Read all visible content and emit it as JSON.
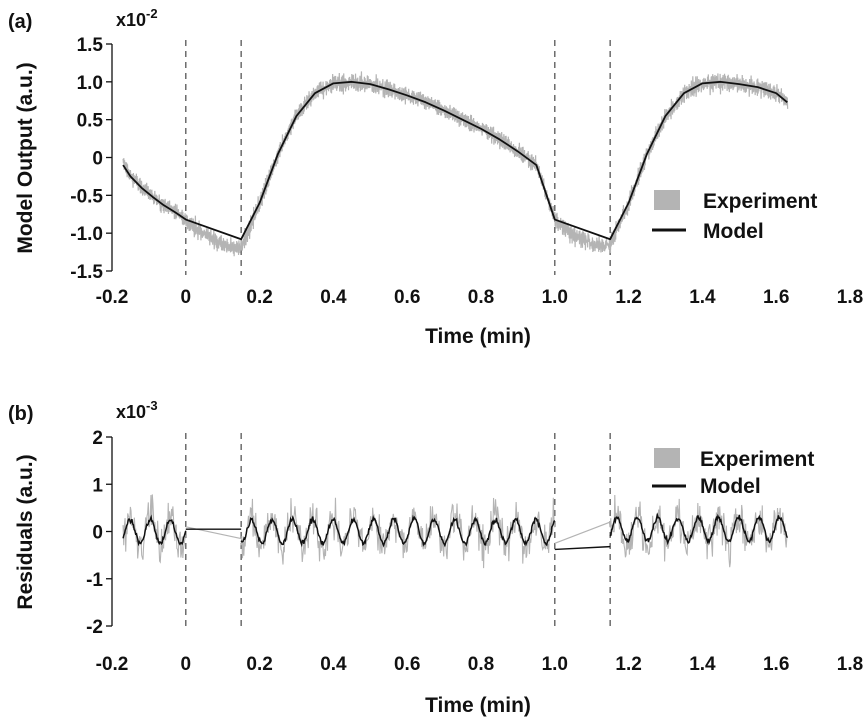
{
  "colors": {
    "experiment": "#b4b4b4",
    "model": "#111111",
    "axis": "#111111",
    "dashed": "#555555"
  },
  "chart_data": [
    {
      "panel_label": "(a)",
      "type": "line",
      "xlabel": "Time (min)",
      "ylabel": "Model Output (a.u.)",
      "y_multiplier": "x10",
      "y_multiplier_exp": "-2",
      "xlim": [
        -0.2,
        1.8
      ],
      "ylim": [
        -1.5,
        1.5
      ],
      "xticks": [
        "-0.2",
        "0",
        "0.2",
        "0.4",
        "0.6",
        "0.8",
        "1.0",
        "1.2",
        "1.4",
        "1.6",
        "1.8"
      ],
      "xtick_values": [
        -0.2,
        0,
        0.2,
        0.4,
        0.6,
        0.8,
        1.0,
        1.2,
        1.4,
        1.6,
        1.8
      ],
      "yticks": [
        "1.5",
        "1.0",
        "0.5",
        "0",
        "-0.5",
        "-1.0",
        "-1.5"
      ],
      "ytick_values": [
        1.5,
        1.0,
        0.5,
        0,
        -0.5,
        -1.0,
        -1.5
      ],
      "vlines": [
        0,
        0.15,
        1.0,
        1.15
      ],
      "legend": {
        "position": "right",
        "items": [
          "Experiment",
          "Model"
        ]
      },
      "series": [
        {
          "name": "Experiment",
          "style": "noisy-band",
          "x": [
            -0.17,
            -0.15,
            -0.12,
            -0.09,
            -0.06,
            -0.03,
            0,
            0.03,
            0.06,
            0.09,
            0.12,
            0.15,
            0.2,
            0.25,
            0.3,
            0.35,
            0.4,
            0.45,
            0.5,
            0.55,
            0.6,
            0.65,
            0.7,
            0.75,
            0.8,
            0.85,
            0.9,
            0.95,
            1.0,
            1.03,
            1.06,
            1.09,
            1.12,
            1.15,
            1.2,
            1.25,
            1.3,
            1.35,
            1.4,
            1.45,
            1.5,
            1.55,
            1.6,
            1.63
          ],
          "y": [
            -0.1,
            -0.25,
            -0.4,
            -0.52,
            -0.63,
            -0.72,
            -0.82,
            -0.95,
            -1.05,
            -1.12,
            -1.17,
            -1.18,
            -0.6,
            0.05,
            0.55,
            0.85,
            0.98,
            1.0,
            0.97,
            0.9,
            0.82,
            0.73,
            0.62,
            0.5,
            0.38,
            0.24,
            0.08,
            -0.1,
            -0.82,
            -0.95,
            -1.05,
            -1.12,
            -1.17,
            -1.15,
            -0.6,
            0.05,
            0.55,
            0.85,
            0.98,
            1.0,
            0.97,
            0.93,
            0.85,
            0.73
          ]
        },
        {
          "name": "Model",
          "style": "line",
          "x": [
            -0.17,
            -0.15,
            -0.12,
            -0.09,
            -0.06,
            -0.03,
            0,
            0.15,
            0.2,
            0.25,
            0.3,
            0.35,
            0.4,
            0.45,
            0.5,
            0.55,
            0.6,
            0.65,
            0.7,
            0.75,
            0.8,
            0.85,
            0.9,
            0.95,
            1.0,
            1.15,
            1.2,
            1.25,
            1.3,
            1.35,
            1.4,
            1.45,
            1.5,
            1.55,
            1.6,
            1.63
          ],
          "y": [
            -0.1,
            -0.25,
            -0.4,
            -0.52,
            -0.63,
            -0.72,
            -0.82,
            -1.08,
            -0.6,
            0.05,
            0.55,
            0.85,
            0.98,
            1.0,
            0.97,
            0.9,
            0.82,
            0.73,
            0.62,
            0.5,
            0.38,
            0.24,
            0.08,
            -0.1,
            -0.82,
            -1.08,
            -0.6,
            0.05,
            0.55,
            0.85,
            0.98,
            1.0,
            0.97,
            0.93,
            0.85,
            0.73
          ]
        }
      ]
    },
    {
      "panel_label": "(b)",
      "type": "line",
      "xlabel": "Time (min)",
      "ylabel": "Residuals (a.u.)",
      "y_multiplier": "x10",
      "y_multiplier_exp": "-3",
      "xlim": [
        -0.2,
        1.8
      ],
      "ylim": [
        -2,
        2
      ],
      "xticks": [
        "-0.2",
        "0",
        "0.2",
        "0.4",
        "0.6",
        "0.8",
        "1.0",
        "1.2",
        "1.4",
        "1.6",
        "1.8"
      ],
      "xtick_values": [
        -0.2,
        0,
        0.2,
        0.4,
        0.6,
        0.8,
        1.0,
        1.2,
        1.4,
        1.6,
        1.8
      ],
      "yticks": [
        "2",
        "1",
        "0",
        "-1",
        "-2"
      ],
      "ytick_values": [
        2,
        1,
        0,
        -1,
        -2
      ],
      "vlines": [
        0,
        0.15,
        1.0,
        1.15
      ],
      "legend": {
        "position": "top-right",
        "items": [
          "Experiment",
          "Model"
        ]
      },
      "segments": [
        [
          -0.17,
          0
        ],
        [
          0.15,
          1.0
        ],
        [
          1.15,
          1.63
        ]
      ],
      "gap_lines": {
        "model": [
          [
            0,
            0.05,
            0.15,
            0.05
          ],
          [
            1.0,
            -0.38,
            1.15,
            -0.32
          ]
        ],
        "experiment": [
          [
            0,
            0.1,
            0.15,
            -0.15
          ],
          [
            1.0,
            -0.25,
            1.15,
            0.2
          ]
        ]
      },
      "series": [
        {
          "name": "Experiment",
          "style": "noise-band",
          "noise_amplitude": 0.6,
          "oscillation_amplitude": 0.3,
          "oscillation_period_min": 0.055
        },
        {
          "name": "Model",
          "style": "oscillation",
          "amplitude": 0.25,
          "period_min": 0.055
        }
      ]
    }
  ]
}
